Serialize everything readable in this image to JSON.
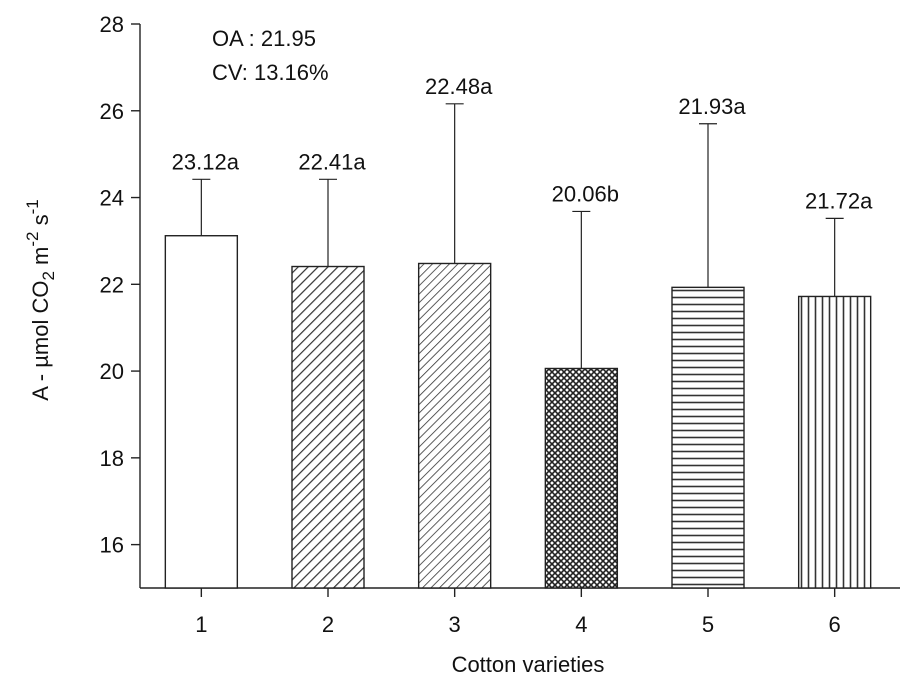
{
  "chart_data": {
    "type": "bar",
    "xlabel": "Cotton varieties",
    "ylabel": {
      "prefix": "A - µmol CO",
      "sub": "2",
      "mid": " m",
      "sup1": "-2",
      "mid2": " s",
      "sup2": "-1"
    },
    "categories": [
      "1",
      "2",
      "3",
      "4",
      "5",
      "6"
    ],
    "values": [
      23.12,
      22.41,
      22.48,
      20.06,
      21.93,
      21.72
    ],
    "error_upper": [
      24.42,
      24.42,
      26.16,
      23.68,
      25.7,
      23.52
    ],
    "labels": [
      "23.12a",
      "22.41a",
      "22.48a",
      "20.06b",
      "21.93a",
      "21.72a"
    ],
    "patterns": [
      "none",
      "diagonal-down",
      "diagonal-down-dense",
      "crosshatch",
      "horizontal",
      "vertical"
    ],
    "ylim": [
      15,
      28
    ],
    "yticks": [
      16,
      18,
      20,
      22,
      24,
      26,
      28
    ],
    "annotations": [
      "OA : 21.95",
      "CV: 13.16%"
    ],
    "grid": false
  }
}
